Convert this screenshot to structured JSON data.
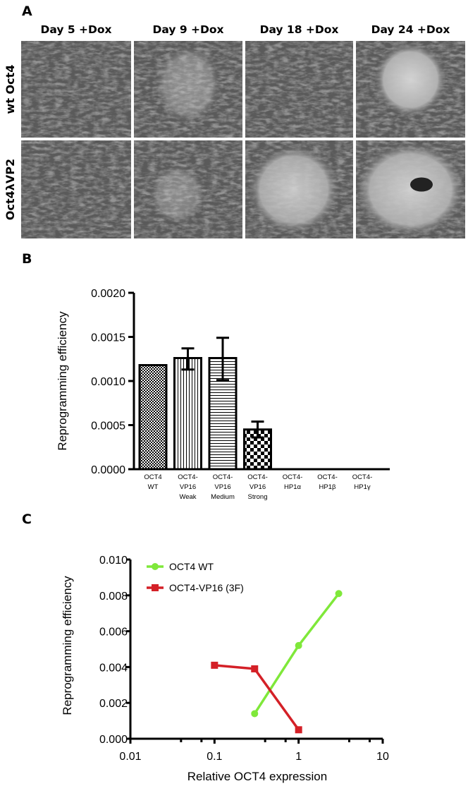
{
  "panel_a": {
    "letter": "A",
    "columns": [
      "Day 5 +Dox",
      "Day 9 +Dox",
      "Day 18 +Dox",
      "Day 24 +Dox"
    ],
    "rows": [
      "wt Oct4",
      "Oct4λVP2"
    ]
  },
  "panel_b": {
    "letter": "B"
  },
  "panel_c": {
    "letter": "C"
  },
  "chart_data": [
    {
      "type": "bar",
      "ylabel": "Reprogramming efficiency",
      "ylim": [
        0,
        0.002
      ],
      "yticks": [
        "0.0000",
        "0.0005",
        "0.0010",
        "0.0015",
        "0.0020"
      ],
      "categories": [
        [
          "OCT4",
          "WT"
        ],
        [
          "OCT4-",
          "VP16",
          "Weak"
        ],
        [
          "OCT4-",
          "VP16",
          "Medium"
        ],
        [
          "OCT4-",
          "VP16",
          "Strong"
        ],
        [
          "OCT4-",
          "HP1α"
        ],
        [
          "OCT4-",
          "HP1β"
        ],
        [
          "OCT4-",
          "HP1γ"
        ]
      ],
      "values": [
        0.00118,
        0.00126,
        0.00126,
        0.00045,
        0,
        0,
        0
      ],
      "error_low": [
        null,
        0.00113,
        0.00101,
        0.00036,
        null,
        null,
        null
      ],
      "error_high": [
        null,
        0.00137,
        0.00149,
        0.00054,
        null,
        null,
        null
      ],
      "fill_patterns": [
        "fine-checker",
        "vertical-lines",
        "horizontal-lines",
        "coarse-checker",
        "none",
        "none",
        "none"
      ],
      "grid": false
    },
    {
      "type": "line",
      "xlabel": "Relative OCT4 expression",
      "ylabel": "Reprogramming efficiency",
      "xscale": "log",
      "xlim": [
        0.01,
        10
      ],
      "ylim": [
        0,
        0.01
      ],
      "xticks": [
        "0.01",
        "0.1",
        "1",
        "10"
      ],
      "yticks": [
        "0.000",
        "0.002",
        "0.004",
        "0.006",
        "0.008",
        "0.010"
      ],
      "legend_position": "top-left",
      "grid": false,
      "series": [
        {
          "name": "OCT4 WT",
          "color": "#7fe83a",
          "marker": "circle",
          "x": [
            0.3,
            1,
            3
          ],
          "y": [
            0.0014,
            0.0052,
            0.0081
          ]
        },
        {
          "name": "OCT4-VP16 (3F)",
          "color": "#d42027",
          "marker": "square",
          "x": [
            0.1,
            0.3,
            1
          ],
          "y": [
            0.0041,
            0.0039,
            0.0005
          ]
        }
      ]
    }
  ]
}
